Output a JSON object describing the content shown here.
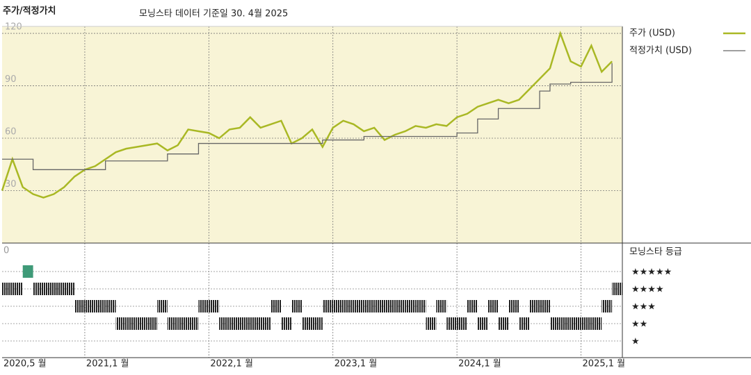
{
  "chart_data": [
    {
      "type": "line",
      "title": "주가/적정가치",
      "subtitle": "모닝스타 데이터 기준일 30. 4월 2025",
      "x": [
        "2020-05",
        "2020-06",
        "2020-07",
        "2020-08",
        "2020-09",
        "2020-10",
        "2020-11",
        "2020-12",
        "2021-01",
        "2021-02",
        "2021-03",
        "2021-04",
        "2021-05",
        "2021-06",
        "2021-07",
        "2021-08",
        "2021-09",
        "2021-10",
        "2021-11",
        "2021-12",
        "2022-01",
        "2022-02",
        "2022-03",
        "2022-04",
        "2022-05",
        "2022-06",
        "2022-07",
        "2022-08",
        "2022-09",
        "2022-10",
        "2022-11",
        "2022-12",
        "2023-01",
        "2023-02",
        "2023-03",
        "2023-04",
        "2023-05",
        "2023-06",
        "2023-07",
        "2023-08",
        "2023-09",
        "2023-10",
        "2023-11",
        "2023-12",
        "2024-01",
        "2024-02",
        "2024-03",
        "2024-04",
        "2024-05",
        "2024-06",
        "2024-07",
        "2024-08",
        "2024-09",
        "2024-10",
        "2024-11",
        "2024-12",
        "2025-01",
        "2025-02",
        "2025-03",
        "2025-04"
      ],
      "series": [
        {
          "name": "주가 (USD)",
          "color": "#a9b824",
          "step": false,
          "values": [
            30,
            48,
            32,
            28,
            26,
            28,
            32,
            38,
            42,
            44,
            48,
            52,
            54,
            55,
            56,
            57,
            53,
            56,
            65,
            64,
            63,
            60,
            65,
            66,
            72,
            66,
            68,
            70,
            57,
            60,
            65,
            55,
            66,
            70,
            68,
            64,
            66,
            59,
            62,
            64,
            67,
            66,
            68,
            67,
            72,
            74,
            78,
            80,
            82,
            80,
            82,
            88,
            94,
            100,
            120,
            104,
            101,
            113,
            98,
            104
          ]
        },
        {
          "name": "적정가치 (USD)",
          "color": "#666666",
          "step": true,
          "values": [
            48,
            48,
            48,
            42,
            42,
            42,
            42,
            42,
            42,
            42,
            47,
            47,
            47,
            47,
            47,
            47,
            51,
            51,
            51,
            57,
            57,
            57,
            57,
            57,
            57,
            57,
            57,
            57,
            57,
            57,
            57,
            59,
            59,
            59,
            59,
            61,
            61,
            61,
            61,
            61,
            61,
            61,
            61,
            61,
            63,
            63,
            71,
            71,
            77,
            77,
            77,
            77,
            87,
            91,
            91,
            92,
            92,
            92,
            92,
            103
          ]
        }
      ],
      "xlim": [
        "2020-05",
        "2025-05"
      ],
      "xticks": [
        {
          "value": "2020-05",
          "label": "2020,5 월"
        },
        {
          "value": "2021-01",
          "label": "2021,1 월"
        },
        {
          "value": "2022-01",
          "label": "2022,1 월"
        },
        {
          "value": "2023-01",
          "label": "2023,1 월"
        },
        {
          "value": "2024-01",
          "label": "2024,1 월"
        },
        {
          "value": "2025-01",
          "label": "2025,1 월"
        }
      ],
      "ylim": [
        0,
        124
      ],
      "yticks": [
        30,
        60,
        90,
        120
      ],
      "grid": true,
      "background": "#f8f4d6"
    },
    {
      "type": "rating",
      "title": "모닝스타 등급",
      "corner_label": "0",
      "levels": [
        5,
        4,
        3,
        2,
        1
      ],
      "level_labels": [
        "★★★★★",
        "★★★★",
        "★★★",
        "★★",
        "★"
      ],
      "color": "#222222",
      "top_color": "#3f9a78",
      "values": [
        4,
        4,
        5,
        4,
        4,
        4,
        4,
        3,
        3,
        3,
        3,
        2,
        2,
        2,
        2,
        3,
        2,
        2,
        2,
        3,
        3,
        2,
        2,
        2,
        2,
        2,
        3,
        2,
        3,
        2,
        2,
        3,
        3,
        3,
        3,
        3,
        3,
        3,
        3,
        3,
        3,
        2,
        3,
        2,
        2,
        3,
        2,
        3,
        2,
        3,
        2,
        3,
        3,
        2,
        2,
        2,
        2,
        2,
        3,
        4
      ]
    }
  ]
}
